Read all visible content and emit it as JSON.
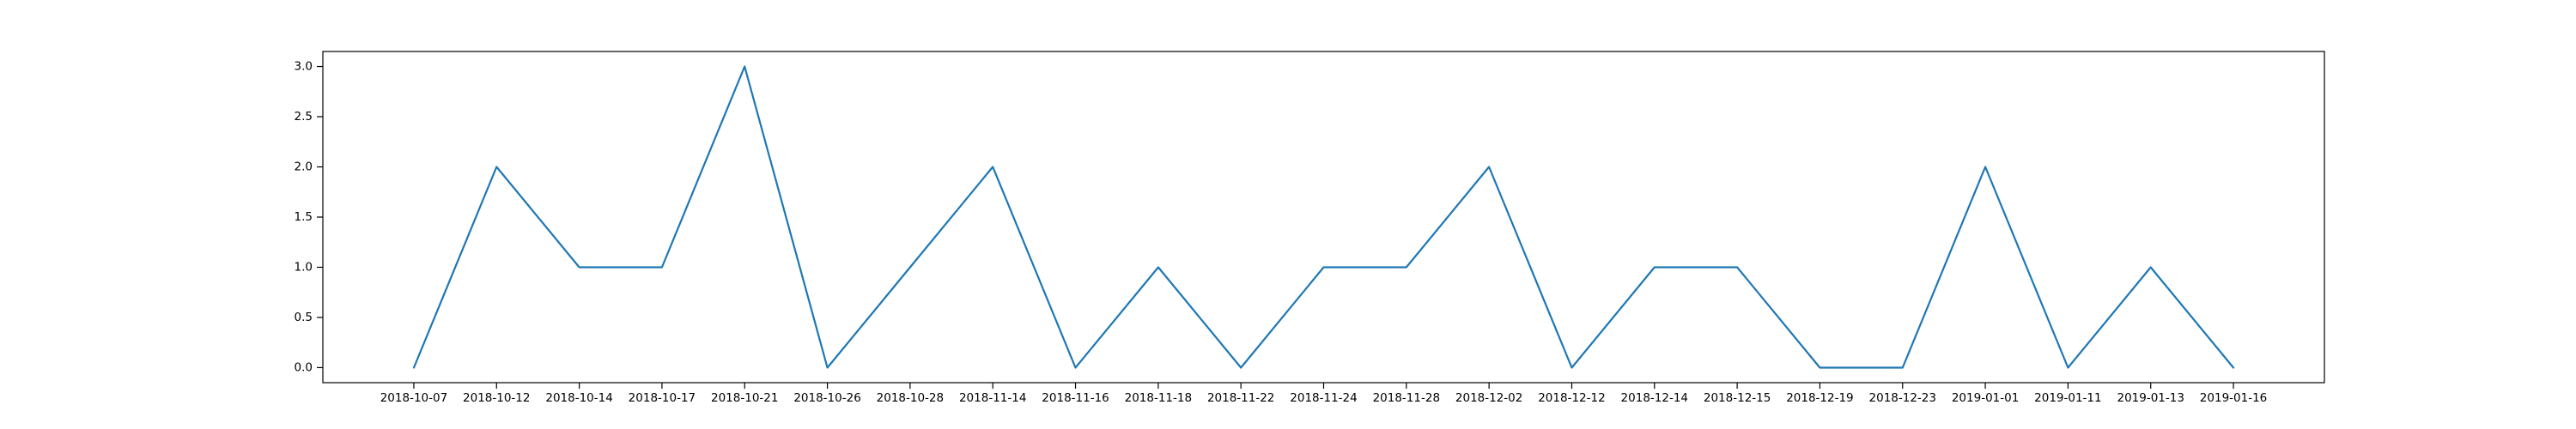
{
  "chart_data": {
    "type": "line",
    "title": "",
    "xlabel": "",
    "ylabel": "",
    "categories": [
      "2018-10-07",
      "2018-10-12",
      "2018-10-14",
      "2018-10-17",
      "2018-10-21",
      "2018-10-26",
      "2018-10-28",
      "2018-11-14",
      "2018-11-16",
      "2018-11-18",
      "2018-11-22",
      "2018-11-24",
      "2018-11-28",
      "2018-12-02",
      "2018-12-12",
      "2018-12-14",
      "2018-12-15",
      "2018-12-19",
      "2018-12-23",
      "2019-01-01",
      "2019-01-11",
      "2019-01-13",
      "2019-01-16"
    ],
    "values": [
      0,
      2,
      1,
      1,
      3,
      0,
      1,
      2,
      0,
      1,
      0,
      1,
      1,
      2,
      0,
      1,
      1,
      0,
      0,
      2,
      0,
      1,
      0
    ],
    "ylim": [
      -0.15,
      3.15
    ],
    "yticks": [
      "0.0",
      "0.5",
      "1.0",
      "1.5",
      "2.0",
      "2.5",
      "3.0"
    ],
    "grid": false,
    "legend": "none",
    "line_color": "#1f77b4"
  }
}
